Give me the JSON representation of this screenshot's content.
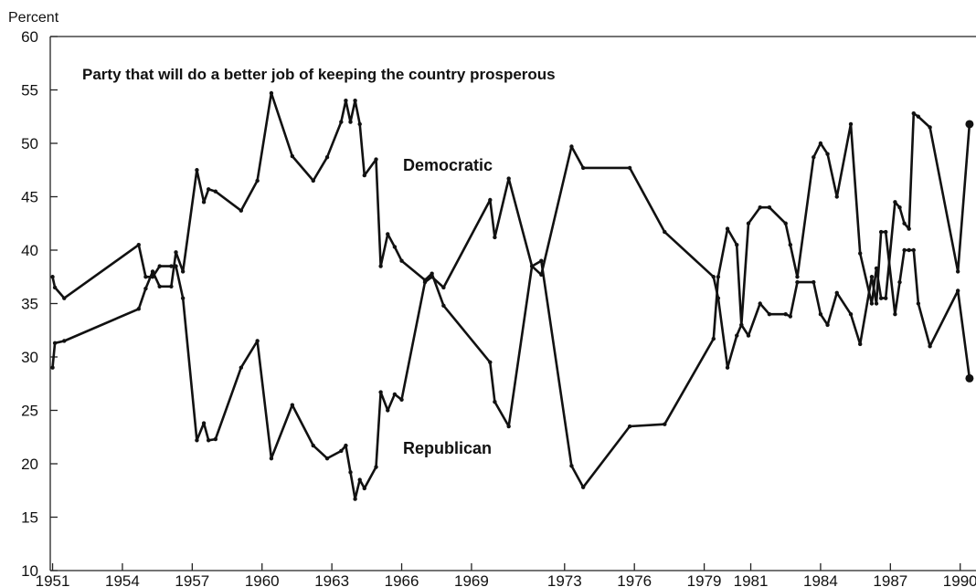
{
  "chart_data": {
    "type": "line",
    "title": "Party that will do a better job of keeping the country prosperous",
    "ylabel": "Percent",
    "xlabel": "",
    "ylim": [
      10,
      60
    ],
    "xlim": [
      1950.9,
      1990.6
    ],
    "yticks": [
      "10",
      "15",
      "20",
      "25",
      "30",
      "35",
      "40",
      "45",
      "50",
      "55",
      "60"
    ],
    "xticks": [
      "1951",
      "1954",
      "1957",
      "1960",
      "1963",
      "1966",
      "1969",
      "1973",
      "1976",
      "1979",
      "1981",
      "1984",
      "1987",
      "1990"
    ],
    "grid": false,
    "series": [
      {
        "name": "Democratic",
        "color": "#111111",
        "x": [
          1951.0,
          1951.1,
          1951.5,
          1954.7,
          1955.0,
          1955.3,
          1955.6,
          1956.1,
          1956.3,
          1956.6,
          1957.2,
          1957.5,
          1957.7,
          1958.0,
          1959.1,
          1959.8,
          1960.4,
          1961.3,
          1962.2,
          1962.8,
          1963.4,
          1963.6,
          1963.8,
          1964.0,
          1964.2,
          1964.4,
          1964.9,
          1965.1,
          1965.4,
          1965.7,
          1966.0,
          1967.0,
          1967.3,
          1967.8,
          1969.8,
          1970.0,
          1970.6,
          1971.6,
          1972.0,
          1973.3,
          1973.8,
          1975.8,
          1977.3,
          1979.4,
          1979.6,
          1980.0,
          1980.4,
          1980.6,
          1980.9,
          1981.4,
          1981.8,
          1982.5,
          1982.7,
          1983.0,
          1983.7,
          1984.0,
          1984.3,
          1984.7,
          1985.3,
          1985.7,
          1986.2,
          1986.4,
          1986.6,
          1986.8,
          1987.2,
          1987.4,
          1987.6,
          1987.8,
          1988.0,
          1988.2,
          1988.7,
          1989.9,
          1990.4
        ],
        "y": [
          29,
          31.3,
          31.5,
          34.5,
          36.4,
          38,
          36.6,
          36.6,
          39.8,
          38,
          47.5,
          44.5,
          45.7,
          45.5,
          43.7,
          46.5,
          54.7,
          48.8,
          46.5,
          48.7,
          52,
          54,
          52,
          54,
          51.8,
          47,
          48.5,
          38.5,
          41.5,
          40.3,
          39,
          37.2,
          37.8,
          34.8,
          29.5,
          25.8,
          23.5,
          38.5,
          39,
          19.8,
          17.8,
          23.5,
          23.7,
          31.7,
          37.5,
          42,
          40.5,
          33,
          32,
          35,
          34,
          34,
          33.8,
          37,
          37,
          34,
          33,
          36,
          34,
          31.2,
          37.5,
          35,
          41.7,
          41.7,
          34,
          37,
          40,
          40,
          40,
          35,
          31,
          36.2,
          28
        ]
      },
      {
        "name": "Republican",
        "color": "#111111",
        "x": [
          1951.0,
          1951.1,
          1951.5,
          1954.7,
          1955.0,
          1955.3,
          1955.6,
          1956.1,
          1956.3,
          1956.6,
          1957.2,
          1957.5,
          1957.7,
          1958.0,
          1959.1,
          1959.8,
          1960.4,
          1961.3,
          1962.2,
          1962.8,
          1963.4,
          1963.6,
          1963.8,
          1964.0,
          1964.2,
          1964.4,
          1964.9,
          1965.1,
          1965.4,
          1965.7,
          1966.0,
          1967.0,
          1967.3,
          1967.8,
          1969.8,
          1970.0,
          1970.6,
          1971.6,
          1972.0,
          1973.3,
          1973.8,
          1975.8,
          1977.3,
          1979.4,
          1979.6,
          1980.0,
          1980.4,
          1980.6,
          1980.9,
          1981.4,
          1981.8,
          1982.5,
          1982.7,
          1983.0,
          1983.7,
          1984.0,
          1984.3,
          1984.7,
          1985.3,
          1985.7,
          1986.2,
          1986.4,
          1986.6,
          1986.8,
          1987.2,
          1987.4,
          1987.6,
          1987.8,
          1988.0,
          1988.2,
          1988.7,
          1989.9,
          1990.4
        ],
        "y": [
          37.5,
          36.5,
          35.5,
          40.5,
          37.5,
          37.5,
          38.5,
          38.5,
          38.5,
          35.5,
          22.2,
          23.8,
          22.2,
          22.3,
          29,
          31.5,
          20.5,
          25.5,
          21.7,
          20.5,
          21.2,
          21.7,
          19.2,
          16.7,
          18.5,
          17.7,
          19.7,
          26.7,
          25,
          26.5,
          26,
          37,
          37.5,
          36.5,
          44.7,
          41.2,
          46.7,
          38.5,
          37.7,
          49.7,
          47.7,
          47.7,
          41.7,
          37.5,
          35.5,
          29,
          32,
          33,
          42.5,
          44,
          44,
          42.5,
          40.5,
          37.5,
          48.7,
          50,
          49,
          45,
          51.8,
          39.7,
          35,
          38.3,
          35.5,
          35.5,
          44.5,
          44,
          42.5,
          42,
          52.8,
          52.5,
          51.5,
          38,
          51.8
        ]
      }
    ],
    "annotations": {
      "democratic_label": "Democratic",
      "republican_label": "Republican"
    }
  }
}
